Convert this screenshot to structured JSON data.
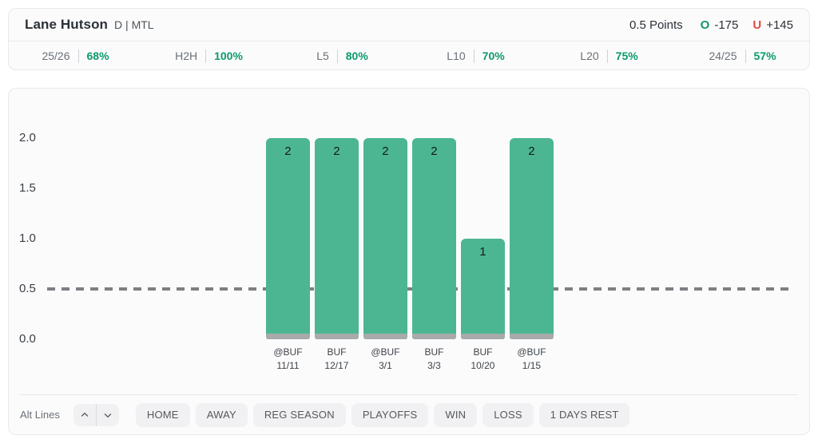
{
  "header": {
    "player_name": "Lane Hutson",
    "position_team": "D | MTL",
    "prop_line": "0.5 Points",
    "over": {
      "label": "O",
      "odds": "-175"
    },
    "under": {
      "label": "U",
      "odds": "+145"
    }
  },
  "stats": [
    {
      "label": "25/26",
      "value": "68%"
    },
    {
      "label": "H2H",
      "value": "100%"
    },
    {
      "label": "L5",
      "value": "80%"
    },
    {
      "label": "L10",
      "value": "70%"
    },
    {
      "label": "L20",
      "value": "75%"
    },
    {
      "label": "24/25",
      "value": "57%"
    }
  ],
  "chart_data": {
    "type": "bar",
    "title": "",
    "xlabel": "",
    "ylabel": "",
    "categories": [
      {
        "opponent": "@BUF",
        "date": "11/11"
      },
      {
        "opponent": "BUF",
        "date": "12/17"
      },
      {
        "opponent": "@BUF",
        "date": "3/1"
      },
      {
        "opponent": "BUF",
        "date": "3/3"
      },
      {
        "opponent": "BUF",
        "date": "10/20"
      },
      {
        "opponent": "@BUF",
        "date": "1/15"
      }
    ],
    "values": [
      2,
      2,
      2,
      2,
      1,
      2
    ],
    "y_ticks": [
      "2.0",
      "1.5",
      "1.0",
      "0.5",
      "0.0"
    ],
    "ylim": [
      0,
      2.2
    ],
    "threshold_line": 0.5,
    "grid": false,
    "legend": false,
    "bar_color": "#4cb693",
    "bar_base_color": "#a8aaac",
    "threshold_color": "#7d7f83"
  },
  "filters": {
    "alt_lines_label": "Alt Lines",
    "buttons": [
      "HOME",
      "AWAY",
      "REG SEASON",
      "PLAYOFFS",
      "WIN",
      "LOSS",
      "1 DAYS REST"
    ]
  },
  "colors": {
    "over_green": "#12976d",
    "under_red": "#e8483f",
    "stat_green": "#0b9a6d"
  }
}
